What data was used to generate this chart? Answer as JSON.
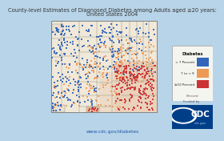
{
  "title_line1": "County-level Estimates of Diagnosed Diabetes among Adults aged ≥20 years:",
  "title_line2": "United States 2004",
  "url_text": "www.cdc.gov/diabetes",
  "background_color": "#b8d4e8",
  "map_face_color": "#f5ede0",
  "state_line_color": "#999999",
  "county_line_color": "#ccbbaa",
  "title_color": "#333333",
  "title_fontsize": 4.8,
  "url_fontsize": 4.2,
  "legend_box_color": "#f2f2f2",
  "legend_border_color": "#aaaaaa",
  "colors": {
    "low": "#4477bb",
    "mid": "#f0a070",
    "high": "#cc4444",
    "bg_low": "#e8eef8",
    "bg_mid": "#f8e8d8",
    "bg_high": "#f0d0c0"
  },
  "dot_size": 1.0
}
